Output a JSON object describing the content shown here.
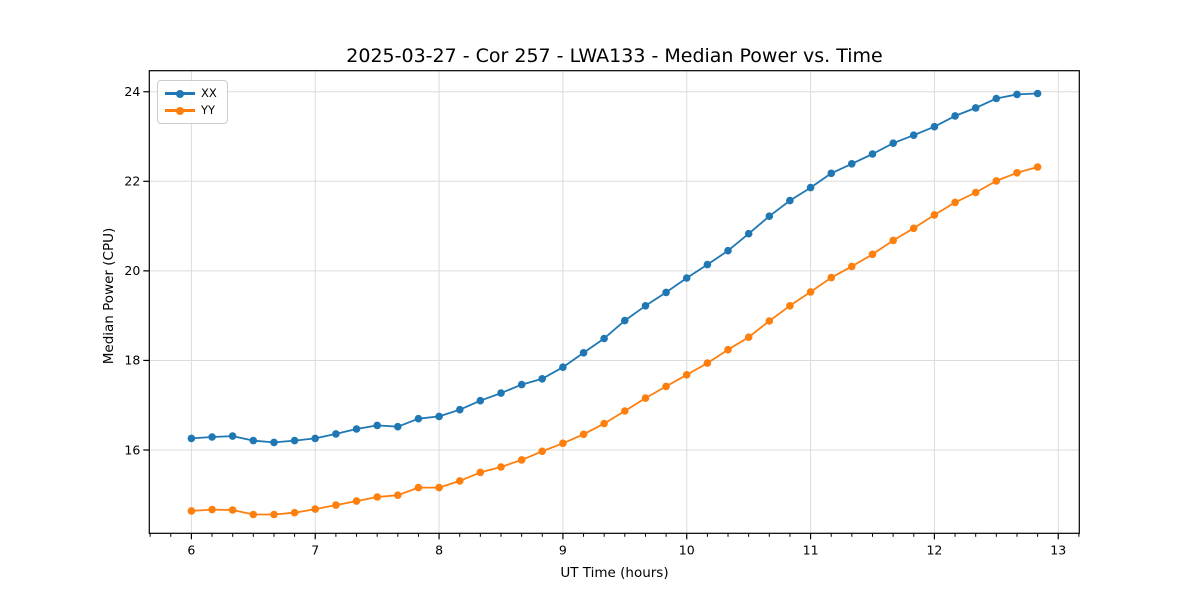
{
  "chart_data": {
    "type": "line",
    "title": "2025-03-27 - Cor 257 - LWA133 - Median Power vs. Time",
    "xlabel": "UT Time (hours)",
    "ylabel": "Median Power (CPU)",
    "x": [
      6.0,
      6.167,
      6.333,
      6.5,
      6.667,
      6.833,
      7.0,
      7.167,
      7.333,
      7.5,
      7.667,
      7.833,
      8.0,
      8.167,
      8.333,
      8.5,
      8.667,
      8.833,
      9.0,
      9.167,
      9.333,
      9.5,
      9.667,
      9.833,
      10.0,
      10.167,
      10.333,
      10.5,
      10.667,
      10.833,
      11.0,
      11.167,
      11.333,
      11.5,
      11.667,
      11.833,
      12.0,
      12.167,
      12.333,
      12.5,
      12.667,
      12.833
    ],
    "series": [
      {
        "name": "XX",
        "color": "#1f77b4",
        "values": [
          16.26,
          16.29,
          16.31,
          16.21,
          16.17,
          16.21,
          16.26,
          16.36,
          16.47,
          16.55,
          16.52,
          16.7,
          16.75,
          16.9,
          17.1,
          17.27,
          17.46,
          17.59,
          17.85,
          18.17,
          18.49,
          18.89,
          19.22,
          19.52,
          19.84,
          20.14,
          20.45,
          20.83,
          21.22,
          21.57,
          21.86,
          22.18,
          22.39,
          22.61,
          22.85,
          23.03,
          23.22,
          23.46,
          23.64,
          23.85,
          23.94,
          23.96
        ]
      },
      {
        "name": "YY",
        "color": "#ff7f0e",
        "values": [
          14.64,
          14.67,
          14.66,
          14.56,
          14.56,
          14.6,
          14.68,
          14.77,
          14.86,
          14.95,
          14.99,
          15.16,
          15.16,
          15.31,
          15.5,
          15.62,
          15.78,
          15.97,
          16.15,
          16.35,
          16.59,
          16.87,
          17.16,
          17.42,
          17.68,
          17.94,
          18.24,
          18.52,
          18.88,
          19.22,
          19.53,
          19.85,
          20.1,
          20.37,
          20.68,
          20.95,
          21.25,
          21.53,
          21.75,
          22.01,
          22.19,
          22.32
        ]
      }
    ],
    "xlim": [
      5.66,
      13.17
    ],
    "ylim": [
      14.14,
      24.47
    ],
    "xticks": [
      6,
      7,
      8,
      9,
      10,
      11,
      12,
      13
    ],
    "yticks": [
      16,
      18,
      20,
      22,
      24
    ],
    "x_minor_step": 0.1666667,
    "grid": true,
    "grid_color": "#dcdcdc",
    "axis_color": "#000000",
    "background_color": "#ffffff",
    "legend_position": "upper-left",
    "marker": "circle"
  }
}
